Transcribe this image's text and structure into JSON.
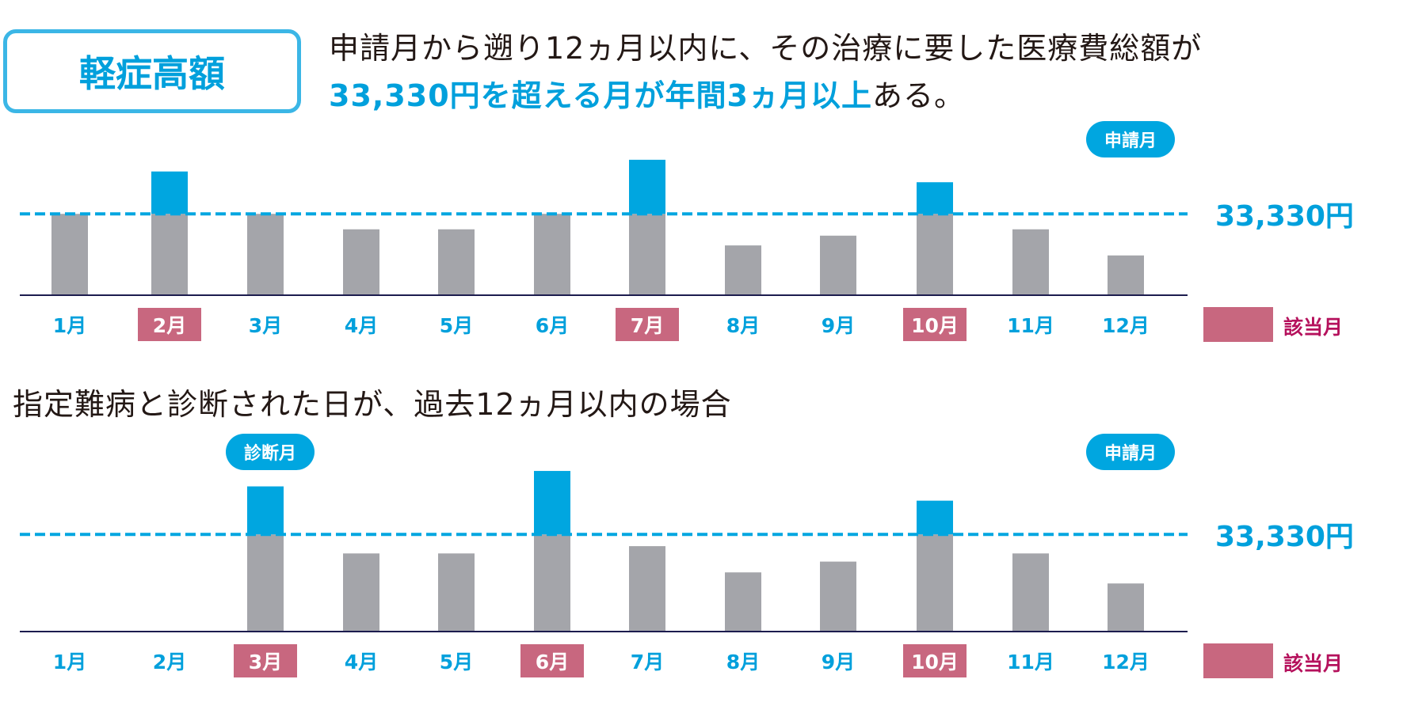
{
  "header": {
    "badge": "軽症高額",
    "lead_line1": "申請月から遡り12ヵ月以内に、その治療に要した医療費総額が",
    "lead_line2_highlight": "33,330円を超える月が年間3ヵ月以上",
    "lead_line2_tail": "ある。"
  },
  "section2_title": "指定難病と診断された日が、過去12ヵ月以内の場合",
  "legend": {
    "label": "該当月",
    "color": "#c8677f"
  },
  "colors": {
    "bar_base": "#a4a5aa",
    "bar_excess": "#00a6e0",
    "threshold": "#00a6e0",
    "axis": "#1c1c4e",
    "label": "#00a0dc",
    "highlight": "#c8677f"
  },
  "chart_data": [
    {
      "type": "bar",
      "title": "",
      "categories": [
        "1月",
        "2月",
        "3月",
        "4月",
        "5月",
        "6月",
        "7月",
        "8月",
        "9月",
        "10月",
        "11月",
        "12月"
      ],
      "values": [
        33330,
        50700,
        33330,
        27000,
        27000,
        33330,
        55500,
        20400,
        24400,
        46300,
        27000,
        16300
      ],
      "threshold": 33330,
      "threshold_label": "33,330円",
      "highlighted": [
        "2月",
        "7月",
        "10月"
      ],
      "annotations": [
        {
          "category": "12月",
          "text": "申請月"
        }
      ],
      "ylim": [
        0,
        60000
      ]
    },
    {
      "type": "bar",
      "title": "",
      "categories": [
        "1月",
        "2月",
        "3月",
        "4月",
        "5月",
        "6月",
        "7月",
        "8月",
        "9月",
        "10月",
        "11月",
        "12月"
      ],
      "values": [
        null,
        null,
        49800,
        26800,
        26800,
        55100,
        29300,
        20300,
        24000,
        44900,
        26800,
        16500
      ],
      "threshold": 33330,
      "threshold_label": "33,330円",
      "highlighted": [
        "3月",
        "6月",
        "10月"
      ],
      "annotations": [
        {
          "category": "3月",
          "text": "診断月"
        },
        {
          "category": "12月",
          "text": "申請月"
        }
      ],
      "ylim": [
        0,
        60000
      ]
    }
  ]
}
